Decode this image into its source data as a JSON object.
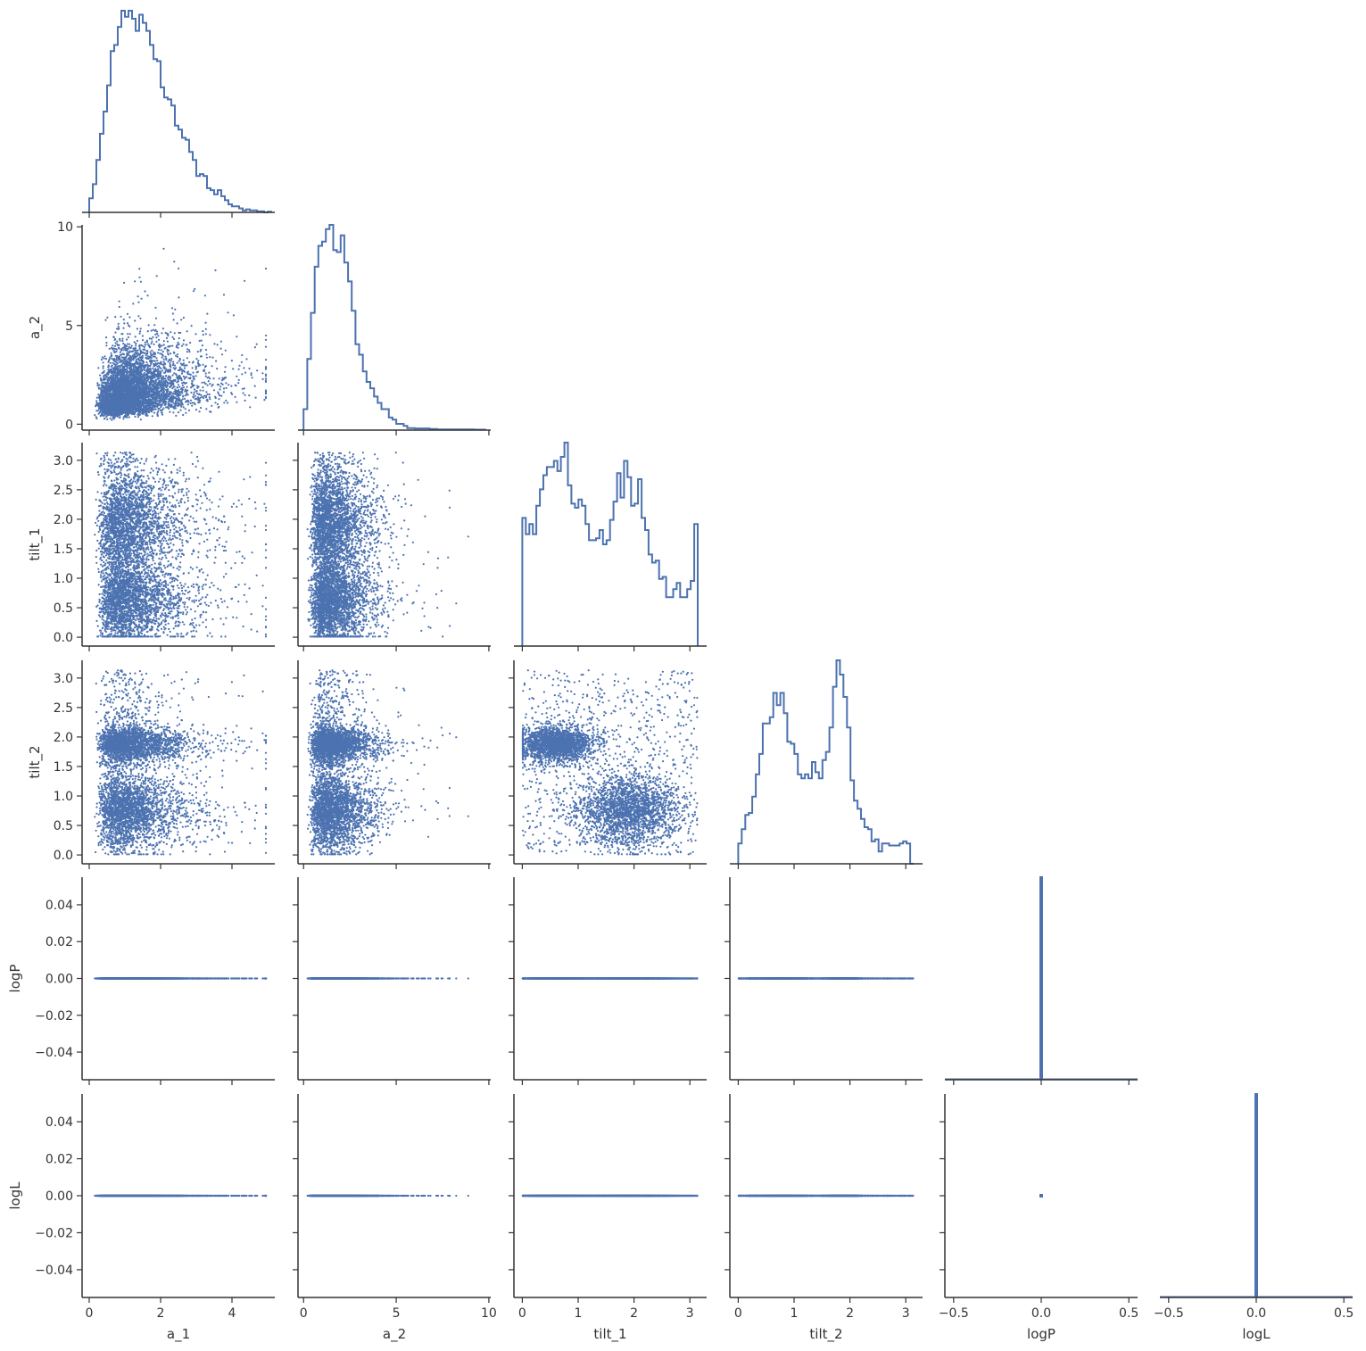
{
  "chart_data": {
    "type": "scatter",
    "title": "",
    "variables": [
      "a_1",
      "a_2",
      "tilt_1",
      "tilt_2",
      "logP",
      "logL"
    ],
    "grid": false,
    "legend": "none",
    "point_color": "#4c72b0",
    "hist_color": "#4c72b0",
    "axes": {
      "a_1": {
        "lim": [
          -0.2,
          5.2
        ],
        "ticks": [
          0,
          2,
          4
        ],
        "tick_labels": [
          "0",
          "2",
          "4"
        ]
      },
      "a_2": {
        "lim": [
          -0.3,
          10.1
        ],
        "ticks": [
          0,
          5,
          10
        ],
        "tick_labels": [
          "0",
          "5",
          "10"
        ]
      },
      "tilt_1": {
        "lim": [
          -0.15,
          3.3
        ],
        "ticks": [
          0,
          0.5,
          1.0,
          1.5,
          2.0,
          2.5,
          3.0
        ],
        "tick_labels": [
          "0.0",
          "0.5",
          "1.0",
          "1.5",
          "2.0",
          "2.5",
          "3.0"
        ],
        "x_ticks": [
          0,
          1,
          2,
          3
        ],
        "x_tick_labels": [
          "0",
          "1",
          "2",
          "3"
        ]
      },
      "tilt_2": {
        "lim": [
          -0.15,
          3.3
        ],
        "ticks": [
          0,
          0.5,
          1.0,
          1.5,
          2.0,
          2.5,
          3.0
        ],
        "tick_labels": [
          "0.0",
          "0.5",
          "1.0",
          "1.5",
          "2.0",
          "2.5",
          "3.0"
        ],
        "x_ticks": [
          0,
          1,
          2,
          3
        ],
        "x_tick_labels": [
          "0",
          "1",
          "2",
          "3"
        ]
      },
      "logP": {
        "lim": [
          -0.055,
          0.055
        ],
        "ticks": [
          -0.04,
          -0.02,
          0.0,
          0.02,
          0.04
        ],
        "tick_labels": [
          "−0.04",
          "−0.02",
          "0.00",
          "0.02",
          "0.04"
        ],
        "x_lim": [
          -0.55,
          0.55
        ],
        "x_ticks": [
          -0.5,
          0.0,
          0.5
        ],
        "x_tick_labels": [
          "−0.5",
          "0.0",
          "0.5"
        ]
      },
      "logL": {
        "lim": [
          -0.055,
          0.055
        ],
        "ticks": [
          -0.04,
          -0.02,
          0.0,
          0.02,
          0.04
        ],
        "tick_labels": [
          "−0.04",
          "−0.02",
          "0.00",
          "0.02",
          "0.04"
        ],
        "x_lim": [
          -0.55,
          0.55
        ],
        "x_ticks": [
          -0.5,
          0.0,
          0.5
        ],
        "x_tick_labels": [
          "−0.5",
          "0.0",
          "0.5"
        ]
      }
    },
    "histograms": {
      "a_1": {
        "type": "step",
        "bin_width": 0.1,
        "start": 0.0,
        "counts": [
          0.07,
          0.14,
          0.26,
          0.39,
          0.5,
          0.63,
          0.8,
          0.83,
          0.92,
          1.0,
          0.97,
          1.0,
          0.96,
          0.9,
          0.98,
          0.94,
          0.9,
          0.83,
          0.76,
          0.75,
          0.62,
          0.57,
          0.56,
          0.53,
          0.43,
          0.41,
          0.37,
          0.36,
          0.3,
          0.26,
          0.18,
          0.19,
          0.18,
          0.12,
          0.11,
          0.09,
          0.11,
          0.08,
          0.06,
          0.04,
          0.03,
          0.03,
          0.02,
          0.01,
          0.015,
          0.01,
          0.01,
          0.005,
          0.005,
          0.0,
          0.003
        ]
      },
      "a_2": {
        "type": "step",
        "bin_width": 0.2,
        "start": 0.0,
        "counts": [
          0.1,
          0.34,
          0.56,
          0.78,
          0.88,
          0.9,
          0.96,
          0.98,
          0.86,
          0.85,
          0.93,
          0.8,
          0.71,
          0.57,
          0.41,
          0.36,
          0.28,
          0.23,
          0.2,
          0.16,
          0.13,
          0.1,
          0.1,
          0.06,
          0.05,
          0.03,
          0.03,
          0.02,
          0.01,
          0.01,
          0.008,
          0.008,
          0.008,
          0.008,
          0.005,
          0.005,
          0.003,
          0.003,
          0.003,
          0.003,
          0.003,
          0.003,
          0.003,
          0.003,
          0.003,
          0.003,
          0.002,
          0.002,
          0.002
        ]
      },
      "tilt_1": {
        "type": "step",
        "bin_width": 0.0628,
        "start": 0.0,
        "counts": [
          0.63,
          0.55,
          0.6,
          0.55,
          0.69,
          0.77,
          0.84,
          0.88,
          0.88,
          0.91,
          0.86,
          0.93,
          1.0,
          0.79,
          0.7,
          0.68,
          0.72,
          0.69,
          0.6,
          0.52,
          0.52,
          0.53,
          0.57,
          0.5,
          0.52,
          0.62,
          0.71,
          0.85,
          0.73,
          0.91,
          0.83,
          0.69,
          0.7,
          0.82,
          0.63,
          0.57,
          0.45,
          0.41,
          0.42,
          0.33,
          0.34,
          0.24,
          0.24,
          0.28,
          0.31,
          0.24,
          0.24,
          0.28,
          0.32,
          0.6
        ]
      },
      "tilt_2": {
        "type": "step",
        "bin_width": 0.0628,
        "start": 0.0,
        "counts": [
          0.1,
          0.17,
          0.24,
          0.25,
          0.33,
          0.44,
          0.54,
          0.69,
          0.69,
          0.72,
          0.84,
          0.78,
          0.84,
          0.74,
          0.6,
          0.59,
          0.54,
          0.44,
          0.42,
          0.44,
          0.42,
          0.5,
          0.45,
          0.42,
          0.51,
          0.55,
          0.67,
          0.87,
          1.0,
          0.93,
          0.82,
          0.67,
          0.41,
          0.31,
          0.27,
          0.22,
          0.18,
          0.17,
          0.11,
          0.12,
          0.06,
          0.1,
          0.1,
          0.09,
          0.09,
          0.09,
          0.1,
          0.11,
          0.1,
          0.0
        ]
      },
      "logP": {
        "type": "step",
        "bin_edges": [
          -0.005,
          0.005
        ],
        "counts": [
          1.0
        ]
      },
      "logL": {
        "type": "step",
        "bin_edges": [
          -0.005,
          0.005
        ],
        "counts": [
          1.0
        ]
      }
    },
    "scatter_points_approx": 5000,
    "notes_visible": "logP and logL samples all equal 0"
  },
  "labels": {
    "x": [
      "a_1",
      "a_2",
      "tilt_1",
      "tilt_2",
      "logP",
      "logL"
    ],
    "y": [
      "",
      "a_2",
      "tilt_1",
      "tilt_2",
      "logP",
      "logL"
    ]
  }
}
